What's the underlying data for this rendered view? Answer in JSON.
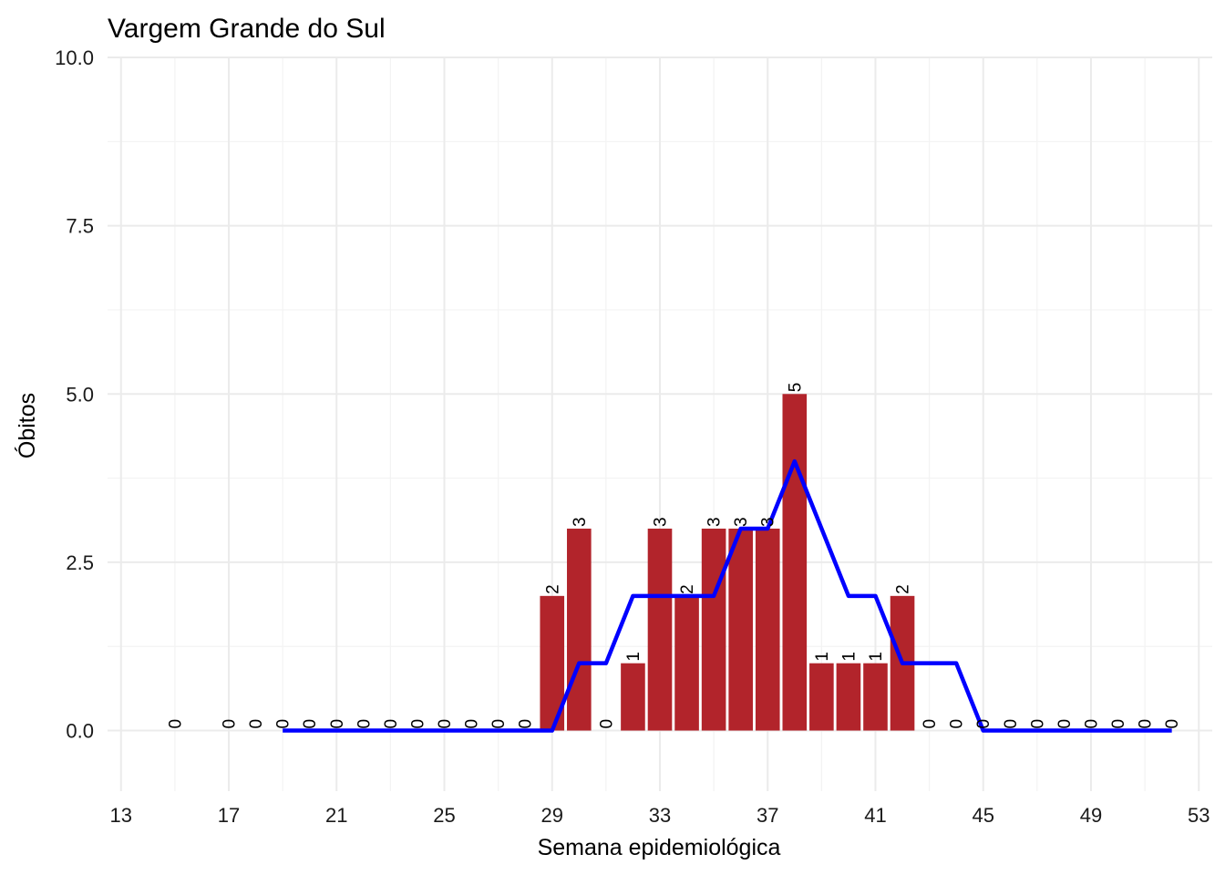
{
  "chart_data": {
    "type": "bar",
    "title": "Vargem Grande do Sul",
    "xlabel": "Semana epidemiológica",
    "ylabel": "Óbitos",
    "xlim": [
      12.5,
      53.5
    ],
    "ylim": [
      -0.9,
      10
    ],
    "x_ticks": [
      13,
      17,
      21,
      25,
      29,
      33,
      37,
      41,
      45,
      49,
      53
    ],
    "y_ticks": [
      0,
      2.5,
      5,
      7.5,
      10
    ],
    "y_tick_labels": [
      "0.0",
      "2.5",
      "5.0",
      "7.5",
      "10.0"
    ],
    "grid": true,
    "colors": {
      "bars": "#b2242b",
      "line": "#0000ff"
    },
    "series": [
      {
        "type": "bar",
        "x": [
          15,
          17,
          18,
          19,
          20,
          21,
          22,
          23,
          24,
          25,
          26,
          27,
          28,
          29,
          30,
          31,
          32,
          33,
          34,
          35,
          36,
          37,
          38,
          39,
          40,
          41,
          42,
          43,
          44,
          45,
          46,
          47,
          48,
          49,
          50,
          51,
          52
        ],
        "values": [
          0,
          0,
          0,
          0,
          0,
          0,
          0,
          0,
          0,
          0,
          0,
          0,
          0,
          2,
          3,
          0,
          1,
          3,
          2,
          3,
          3,
          3,
          5,
          1,
          1,
          1,
          2,
          0,
          0,
          0,
          0,
          0,
          0,
          0,
          0,
          0,
          0
        ],
        "labels": [
          "0",
          "0",
          "0",
          "0",
          "0",
          "0",
          "0",
          "0",
          "0",
          "0",
          "0",
          "0",
          "0",
          "2",
          "3",
          "0",
          "1",
          "3",
          "2",
          "3",
          "3",
          "3",
          "5",
          "1",
          "1",
          "1",
          "2",
          "0",
          "0",
          "0",
          "0",
          "0",
          "0",
          "0",
          "0",
          "0",
          "0"
        ]
      },
      {
        "type": "line",
        "x": [
          19,
          20,
          21,
          22,
          23,
          24,
          25,
          26,
          27,
          28,
          29,
          30,
          31,
          32,
          33,
          34,
          35,
          36,
          37,
          38,
          39,
          40,
          41,
          42,
          43,
          44,
          45,
          46,
          47,
          48,
          49,
          50,
          51,
          52
        ],
        "values": [
          0,
          0,
          0,
          0,
          0,
          0,
          0,
          0,
          0,
          0,
          0,
          1,
          1,
          2,
          2,
          2,
          2,
          3,
          3,
          4,
          3,
          2,
          2,
          1,
          1,
          1,
          0,
          0,
          0,
          0,
          0,
          0,
          0,
          0
        ]
      }
    ]
  }
}
